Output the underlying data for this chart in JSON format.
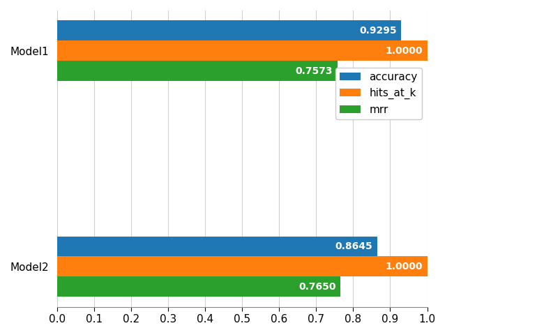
{
  "models": [
    "Model1",
    "Model2"
  ],
  "metrics": [
    "accuracy",
    "hits_at_k",
    "mrr"
  ],
  "values": {
    "Model1": [
      0.9295,
      1.0,
      0.7573
    ],
    "Model2": [
      0.8645,
      1.0,
      0.765
    ]
  },
  "colors": [
    "#1f77b4",
    "#ff7f0e",
    "#2ca02c"
  ],
  "metric_labels": [
    "accuracy",
    "hits_at_k",
    "mrr"
  ],
  "xlim": [
    0.0,
    1.0
  ],
  "xticks": [
    0.0,
    0.1,
    0.2,
    0.3,
    0.4,
    0.5,
    0.6,
    0.7,
    0.8,
    0.9,
    1.0
  ],
  "bar_height": 0.28,
  "label_fontsize": 10,
  "tick_fontsize": 11,
  "legend_fontsize": 11,
  "background_color": "#ffffff",
  "grid_color": "#d0d0d0"
}
